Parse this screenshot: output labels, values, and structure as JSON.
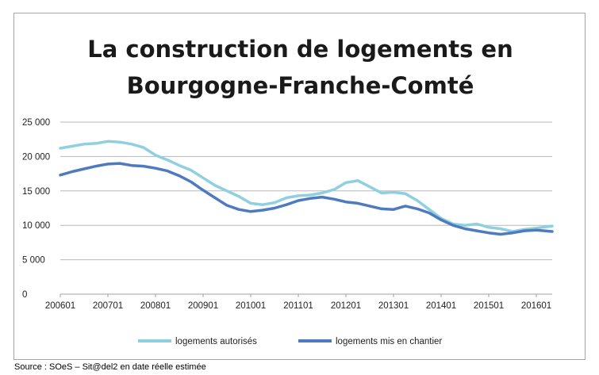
{
  "chart_data": {
    "type": "line",
    "title_lines": [
      "La construction de logements en",
      "Bourgogne-Franche-Comté"
    ],
    "xlabel": "",
    "ylabel": "",
    "ylim": [
      0,
      25000
    ],
    "yticks": [
      {
        "value": 0,
        "label": "0"
      },
      {
        "value": 5000,
        "label": "5 000"
      },
      {
        "value": 10000,
        "label": "10 000"
      },
      {
        "value": 15000,
        "label": "15 000"
      },
      {
        "value": 20000,
        "label": "20 000"
      },
      {
        "value": 25000,
        "label": "25 000"
      }
    ],
    "xticks": [
      "200601",
      "200701",
      "200801",
      "200901",
      "201001",
      "201101",
      "201201",
      "201301",
      "201401",
      "201501",
      "201601"
    ],
    "x_range": [
      "2006-01",
      "2016-05"
    ],
    "grid": "horizontal",
    "legend_position": "bottom",
    "series": [
      {
        "name": "logements autorisés",
        "color": "#8fd0e0",
        "points": [
          [
            "2006-01",
            21200
          ],
          [
            "2006-04",
            21500
          ],
          [
            "2006-07",
            21800
          ],
          [
            "2006-10",
            21900
          ],
          [
            "2007-01",
            22200
          ],
          [
            "2007-04",
            22100
          ],
          [
            "2007-07",
            21800
          ],
          [
            "2007-10",
            21300
          ],
          [
            "2008-01",
            20200
          ],
          [
            "2008-04",
            19500
          ],
          [
            "2008-07",
            18700
          ],
          [
            "2008-10",
            18000
          ],
          [
            "2009-01",
            16900
          ],
          [
            "2009-04",
            15800
          ],
          [
            "2009-07",
            15000
          ],
          [
            "2009-10",
            14200
          ],
          [
            "2010-01",
            13200
          ],
          [
            "2010-04",
            13000
          ],
          [
            "2010-07",
            13300
          ],
          [
            "2010-10",
            14000
          ],
          [
            "2011-01",
            14300
          ],
          [
            "2011-04",
            14400
          ],
          [
            "2011-07",
            14700
          ],
          [
            "2011-10",
            15200
          ],
          [
            "2012-01",
            16200
          ],
          [
            "2012-04",
            16500
          ],
          [
            "2012-07",
            15600
          ],
          [
            "2012-10",
            14700
          ],
          [
            "2013-01",
            14800
          ],
          [
            "2013-04",
            14600
          ],
          [
            "2013-07",
            13600
          ],
          [
            "2013-10",
            12300
          ],
          [
            "2014-01",
            11000
          ],
          [
            "2014-04",
            10200
          ],
          [
            "2014-07",
            10000
          ],
          [
            "2014-10",
            10200
          ],
          [
            "2015-01",
            9700
          ],
          [
            "2015-04",
            9500
          ],
          [
            "2015-07",
            9100
          ],
          [
            "2015-10",
            9400
          ],
          [
            "2016-01",
            9600
          ],
          [
            "2016-05",
            9900
          ]
        ]
      },
      {
        "name": "logements mis en chantier",
        "color": "#4e7ac0",
        "points": [
          [
            "2006-01",
            17300
          ],
          [
            "2006-04",
            17800
          ],
          [
            "2006-07",
            18200
          ],
          [
            "2006-10",
            18600
          ],
          [
            "2007-01",
            18900
          ],
          [
            "2007-04",
            19000
          ],
          [
            "2007-07",
            18700
          ],
          [
            "2007-10",
            18600
          ],
          [
            "2008-01",
            18300
          ],
          [
            "2008-04",
            17900
          ],
          [
            "2008-07",
            17200
          ],
          [
            "2008-10",
            16300
          ],
          [
            "2009-01",
            15100
          ],
          [
            "2009-04",
            14000
          ],
          [
            "2009-07",
            12900
          ],
          [
            "2009-10",
            12300
          ],
          [
            "2010-01",
            12000
          ],
          [
            "2010-04",
            12200
          ],
          [
            "2010-07",
            12500
          ],
          [
            "2010-10",
            13000
          ],
          [
            "2011-01",
            13600
          ],
          [
            "2011-04",
            13900
          ],
          [
            "2011-07",
            14100
          ],
          [
            "2011-10",
            13800
          ],
          [
            "2012-01",
            13400
          ],
          [
            "2012-04",
            13200
          ],
          [
            "2012-07",
            12800
          ],
          [
            "2012-10",
            12400
          ],
          [
            "2013-01",
            12300
          ],
          [
            "2013-04",
            12800
          ],
          [
            "2013-07",
            12400
          ],
          [
            "2013-10",
            11800
          ],
          [
            "2014-01",
            10800
          ],
          [
            "2014-04",
            10000
          ],
          [
            "2014-07",
            9500
          ],
          [
            "2014-10",
            9200
          ],
          [
            "2015-01",
            8900
          ],
          [
            "2015-04",
            8700
          ],
          [
            "2015-07",
            8900
          ],
          [
            "2015-10",
            9200
          ],
          [
            "2016-01",
            9300
          ],
          [
            "2016-05",
            9100
          ]
        ]
      }
    ]
  },
  "source": "Source : SOeS – Sit@del2 en date réelle estimée"
}
